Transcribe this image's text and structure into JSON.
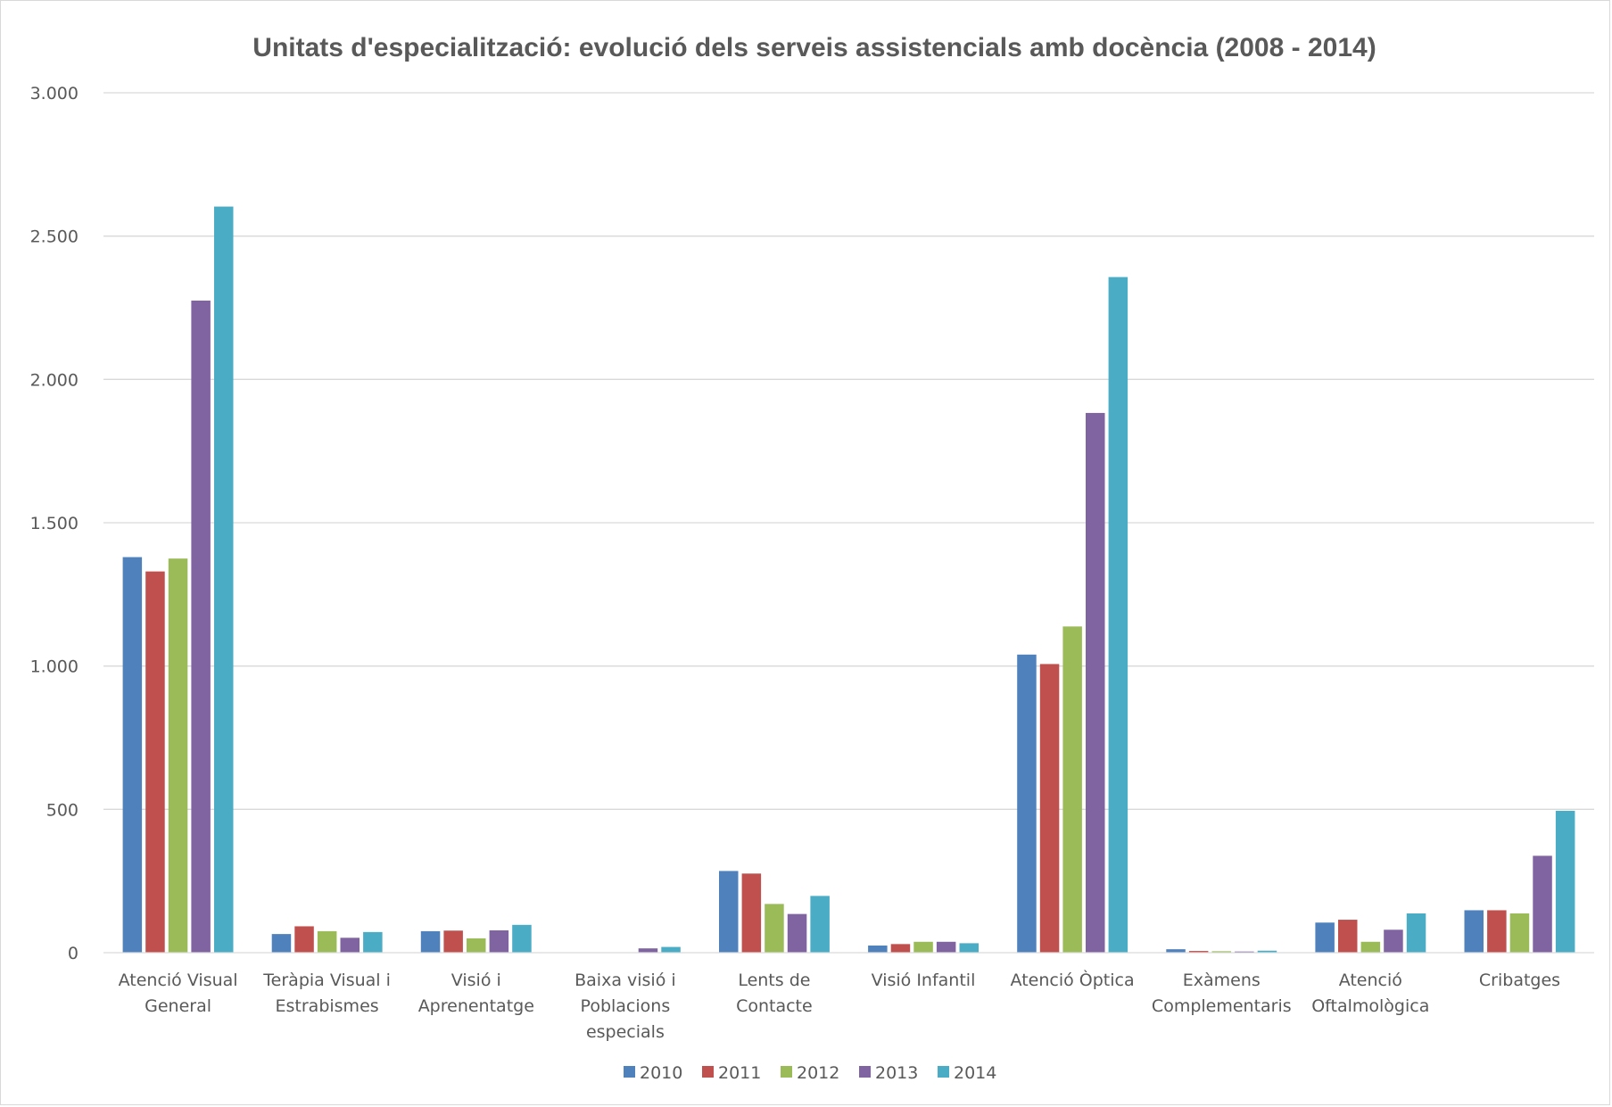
{
  "chart_data": {
    "type": "bar",
    "title": "Unitats d'especialització: evolució dels serveis assistencials amb docència (2008 - 2014)",
    "xlabel": "",
    "ylabel": "",
    "ylim": [
      0,
      3000
    ],
    "yticks": [
      0,
      500,
      1000,
      1500,
      2000,
      2500,
      3000
    ],
    "ytick_labels": [
      "0",
      "500",
      "1.000",
      "1.500",
      "2.000",
      "2.500",
      "3.000"
    ],
    "grid": true,
    "legend_position": "bottom",
    "categories": [
      [
        "Atenció Visual",
        "General"
      ],
      [
        "Teràpia Visual i",
        "Estrabismes"
      ],
      [
        "Visió i",
        "Aprenentatge"
      ],
      [
        "Baixa visió i",
        "Poblacions",
        "especials"
      ],
      [
        "Lents de",
        "Contacte"
      ],
      [
        "Visió Infantil"
      ],
      [
        "Atenció Òptica"
      ],
      [
        "Exàmens",
        "Complementaris"
      ],
      [
        "Atenció",
        "Oftalmològica"
      ],
      [
        "Cribatges"
      ]
    ],
    "series": [
      {
        "name": "2010",
        "color": "#4F81BD",
        "values": [
          1380,
          65,
          75,
          0,
          285,
          25,
          1040,
          12,
          105,
          148
        ]
      },
      {
        "name": "2011",
        "color": "#C0504D",
        "values": [
          1330,
          92,
          77,
          0,
          276,
          30,
          1007,
          6,
          115,
          148
        ]
      },
      {
        "name": "2012",
        "color": "#9BBB59",
        "values": [
          1375,
          75,
          50,
          0,
          170,
          38,
          1138,
          5,
          38,
          137
        ]
      },
      {
        "name": "2013",
        "color": "#8064A2",
        "values": [
          2275,
          52,
          78,
          15,
          135,
          38,
          1883,
          4,
          80,
          338
        ]
      },
      {
        "name": "2014",
        "color": "#4BACC6",
        "values": [
          2603,
          72,
          97,
          20,
          198,
          33,
          2357,
          7,
          137,
          495
        ]
      }
    ]
  }
}
